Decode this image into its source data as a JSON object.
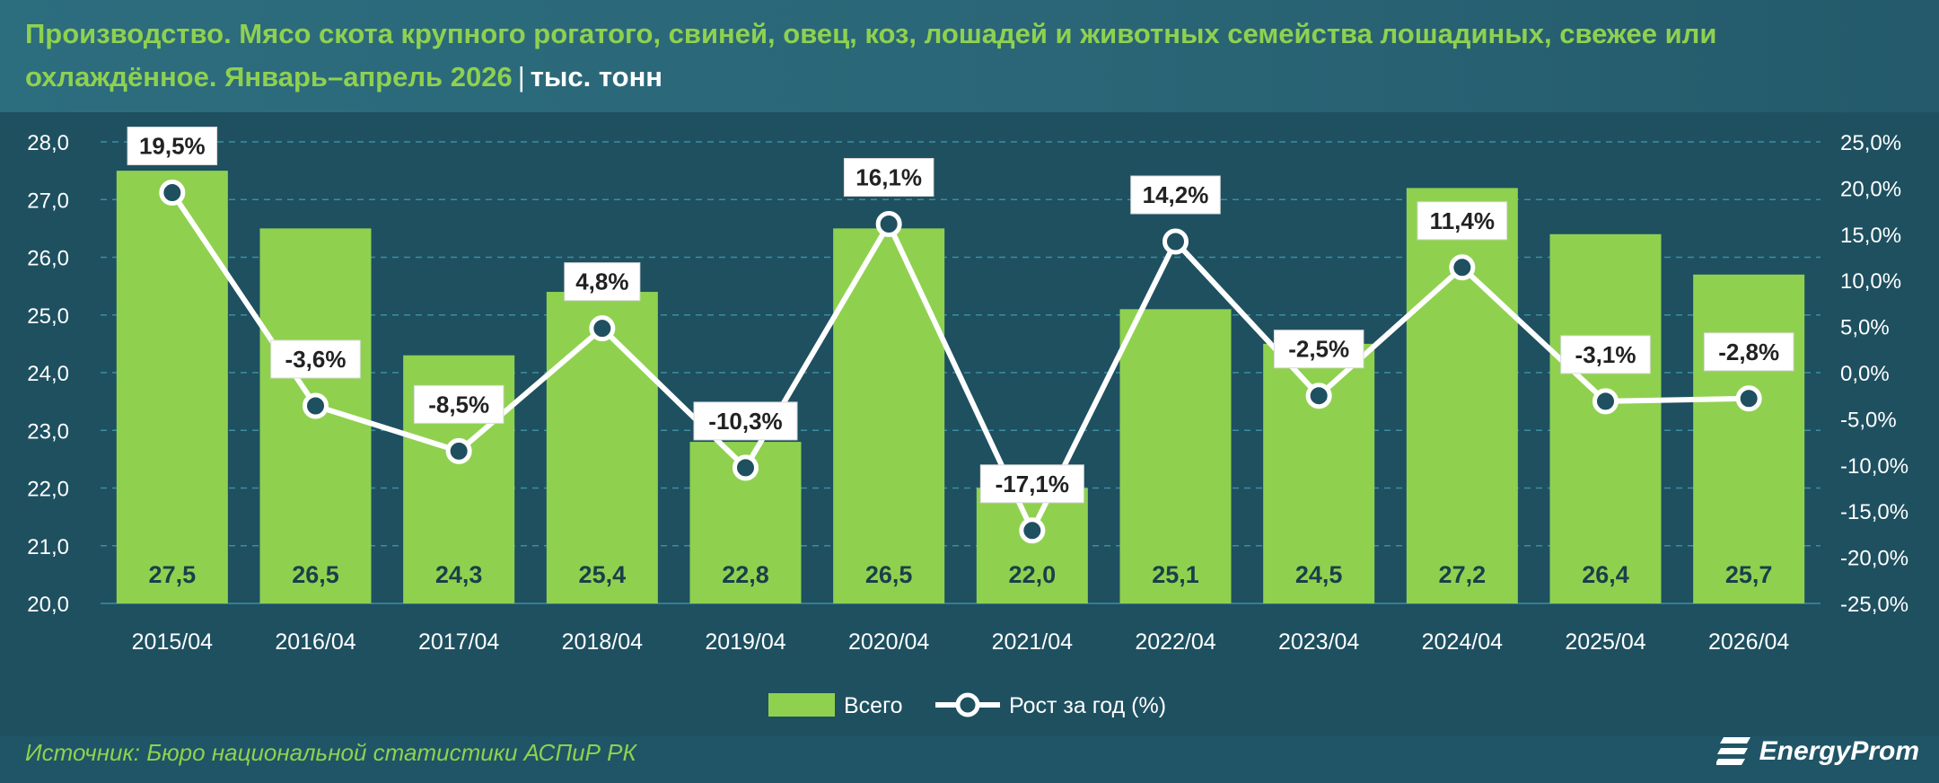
{
  "header": {
    "title_main": "Производство. Мясо скота крупного рогатого, свиней, овец, коз, лошадей и животных семейства лошадиных, свежее или охлаждённое. Январь–апрель 2026",
    "title_sep": "|",
    "title_unit": "тыс. тонн"
  },
  "footer": {
    "source": "Источник: Бюро национальной статистики АСПиР РК",
    "logo_text": "EnergyProm",
    "logo_icon": "energyprom-logo-icon"
  },
  "colors": {
    "bar": "#8fd14f",
    "line": "#ffffff",
    "title": "#8fd14f",
    "grid": "#3d8da0",
    "text": "#ffffff"
  },
  "chart_data": {
    "type": "bar",
    "categories": [
      "2015/04",
      "2016/04",
      "2017/04",
      "2018/04",
      "2019/04",
      "2020/04",
      "2021/04",
      "2022/04",
      "2023/04",
      "2024/04",
      "2025/04",
      "2026/04"
    ],
    "series": [
      {
        "name": "Всего",
        "type": "bar",
        "axis": "left",
        "values": [
          27.5,
          26.5,
          24.3,
          25.4,
          22.8,
          26.5,
          22.0,
          25.1,
          24.5,
          27.2,
          26.4,
          25.7
        ],
        "labels": [
          "27,5",
          "26,5",
          "24,3",
          "25,4",
          "22,8",
          "26,5",
          "22,0",
          "25,1",
          "24,5",
          "27,2",
          "26,4",
          "25,7"
        ]
      },
      {
        "name": "Рост за год (%)",
        "type": "line",
        "axis": "right",
        "values": [
          19.5,
          -3.6,
          -8.5,
          4.8,
          -10.3,
          16.1,
          -17.1,
          14.2,
          -2.5,
          11.4,
          -3.1,
          -2.8
        ],
        "labels": [
          "19,5%",
          "-3,6%",
          "-8,5%",
          "4,8%",
          "-10,3%",
          "16,1%",
          "-17,1%",
          "14,2%",
          "-2,5%",
          "11,4%",
          "-3,1%",
          "-2,8%"
        ]
      }
    ],
    "y_left": {
      "range": [
        20,
        28
      ],
      "ticks": [
        20,
        21,
        22,
        23,
        24,
        25,
        26,
        27,
        28
      ],
      "tick_labels": [
        "20,0",
        "21,0",
        "22,0",
        "23,0",
        "24,0",
        "25,0",
        "26,0",
        "27,0",
        "28,0"
      ]
    },
    "y_right": {
      "range": [
        -25,
        25
      ],
      "ticks": [
        -25,
        -20,
        -15,
        -10,
        -5,
        0,
        5,
        10,
        15,
        20,
        25
      ],
      "tick_labels": [
        "-25,0%",
        "-20,0%",
        "-15,0%",
        "-10,0%",
        "-5,0%",
        "0,0%",
        "5,0%",
        "10,0%",
        "15,0%",
        "20,0%",
        "25,0%"
      ]
    },
    "grid": true,
    "legend_position": "bottom-center",
    "title": "Производство. Мясо скота крупного рогатого, свиней, овец, коз, лошадей и животных семейства лошадиных, свежее или охлаждённое. Январь–апрель 2026"
  }
}
